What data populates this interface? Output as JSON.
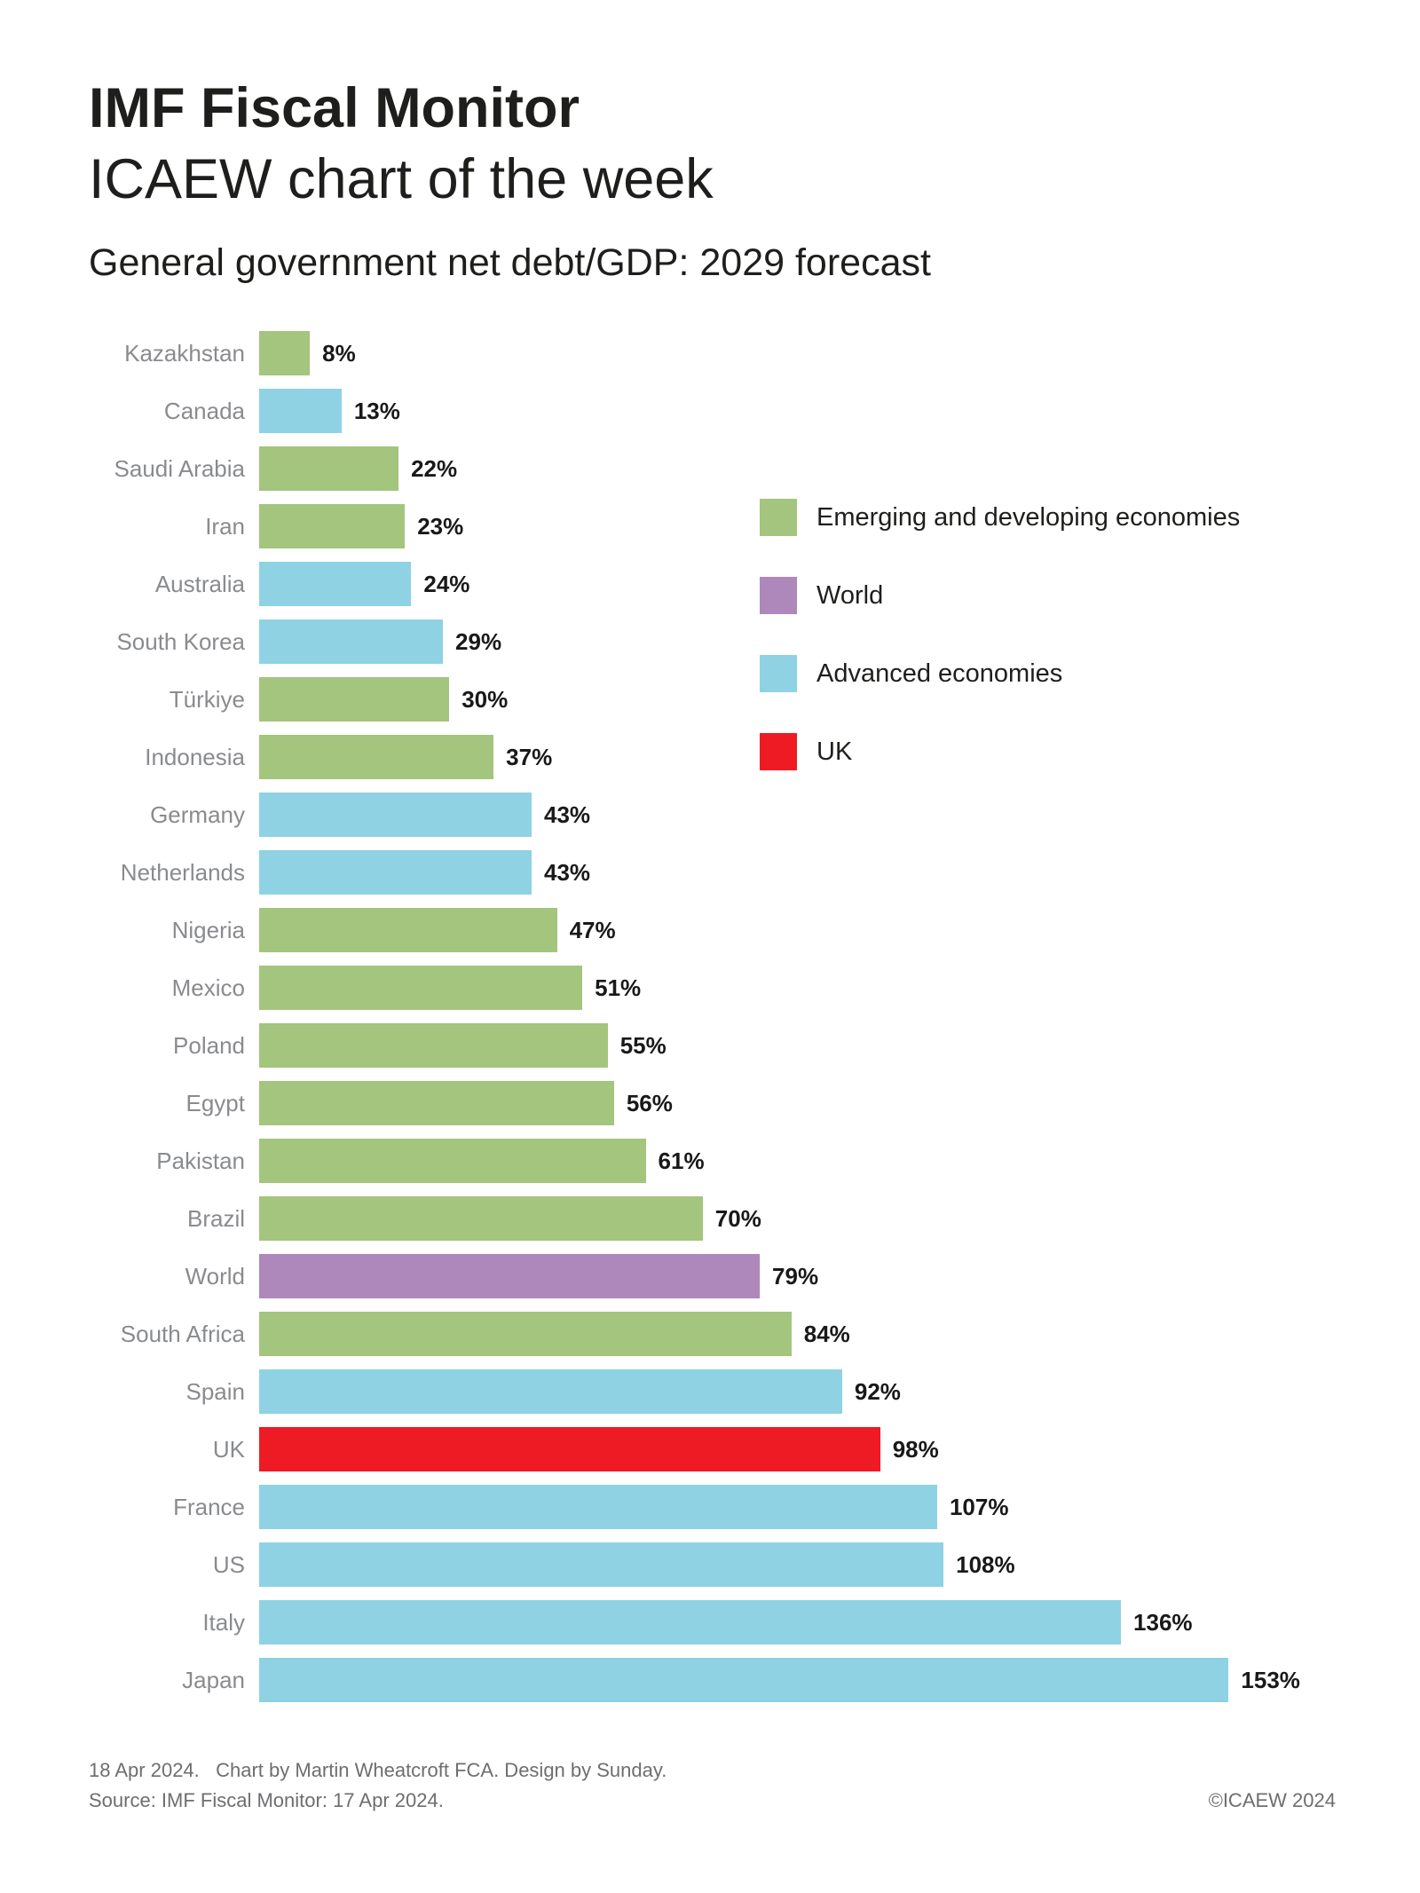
{
  "header": {
    "title_line1": "IMF Fiscal Monitor",
    "title_line2": "ICAEW chart of the week",
    "chart_title": "General government net debt/GDP: 2029 forecast"
  },
  "colors": {
    "emerging": "#a4c57d",
    "world": "#ae87bb",
    "advanced": "#8fd2e4",
    "uk": "#ee1b24",
    "text_dark": "#1e1e1c",
    "country_label": "#898b8e",
    "value_label": "#191919",
    "footer_text": "#6d6e70",
    "background": "#ffffff"
  },
  "chart_data": {
    "type": "bar",
    "orientation": "horizontal",
    "title": "General government net debt/GDP: 2029 forecast",
    "xlabel": "",
    "ylabel": "",
    "value_unit": "% of GDP",
    "xlim": [
      0,
      160
    ],
    "grid": false,
    "bar_labels": "outside-end",
    "legend_position": "upper-right",
    "categories": [
      "Kazakhstan",
      "Canada",
      "Saudi Arabia",
      "Iran",
      "Australia",
      "South Korea",
      "Türkiye",
      "Indonesia",
      "Germany",
      "Netherlands",
      "Nigeria",
      "Mexico",
      "Poland",
      "Egypt",
      "Pakistan",
      "Brazil",
      "World",
      "South Africa",
      "Spain",
      "UK",
      "France",
      "US",
      "Italy",
      "Japan"
    ],
    "values": [
      8,
      13,
      22,
      23,
      24,
      29,
      30,
      37,
      43,
      43,
      47,
      51,
      55,
      56,
      61,
      70,
      79,
      84,
      92,
      98,
      107,
      108,
      136,
      153
    ],
    "value_labels": [
      "8%",
      "13%",
      "22%",
      "23%",
      "24%",
      "29%",
      "30%",
      "37%",
      "43%",
      "43%",
      "47%",
      "51%",
      "55%",
      "56%",
      "61%",
      "70%",
      "79%",
      "84%",
      "92%",
      "98%",
      "107%",
      "108%",
      "136%",
      "153%"
    ],
    "groups": [
      "emerging",
      "advanced",
      "emerging",
      "emerging",
      "advanced",
      "advanced",
      "emerging",
      "emerging",
      "advanced",
      "advanced",
      "emerging",
      "emerging",
      "emerging",
      "emerging",
      "emerging",
      "emerging",
      "world",
      "emerging",
      "advanced",
      "uk",
      "advanced",
      "advanced",
      "advanced",
      "advanced"
    ]
  },
  "legend": {
    "items": [
      {
        "label": "Emerging and developing economies",
        "group": "emerging"
      },
      {
        "label": "World",
        "group": "world"
      },
      {
        "label": "Advanced economies",
        "group": "advanced"
      },
      {
        "label": "UK",
        "group": "uk"
      }
    ]
  },
  "footer": {
    "line1": "18 Apr 2024.   Chart by Martin Wheatcroft FCA. Design by Sunday.",
    "line2": "Source: IMF Fiscal Monitor: 17 Apr 2024.",
    "copyright": "©ICAEW 2024"
  }
}
